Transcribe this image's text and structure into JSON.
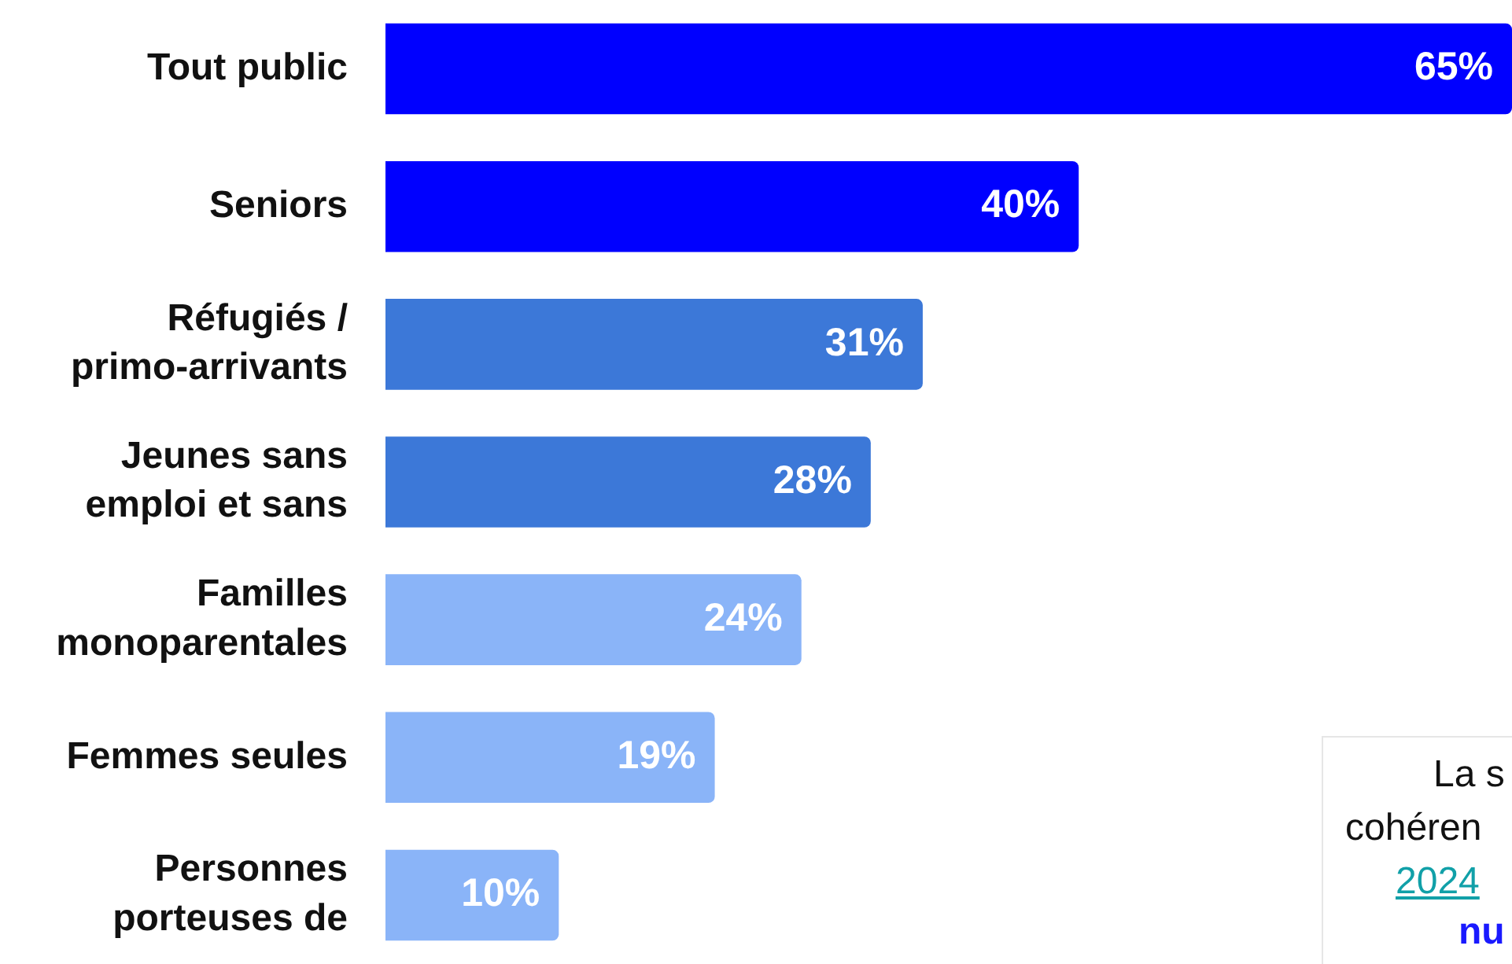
{
  "chart_data": {
    "type": "bar",
    "orientation": "horizontal",
    "categories": [
      "Tout public",
      "Seniors",
      "Réfugiés /\nprimo-arrivants",
      "Jeunes sans\nemploi et sans",
      "Familles\nmonoparentales",
      "Femmes seules",
      "Personnes\nporteuses de"
    ],
    "values": [
      65,
      40,
      31,
      28,
      24,
      19,
      10
    ],
    "value_labels": [
      "65%",
      "40%",
      "31%",
      "28%",
      "24%",
      "19%",
      "10%"
    ],
    "colors": [
      "#0000ff",
      "#0000ff",
      "#3c78d8",
      "#3c78d8",
      "#8ab4f8",
      "#8ab4f8",
      "#8ab4f8"
    ],
    "annotations": [
      "La s",
      "cohéren",
      "2024",
      "nu"
    ]
  }
}
